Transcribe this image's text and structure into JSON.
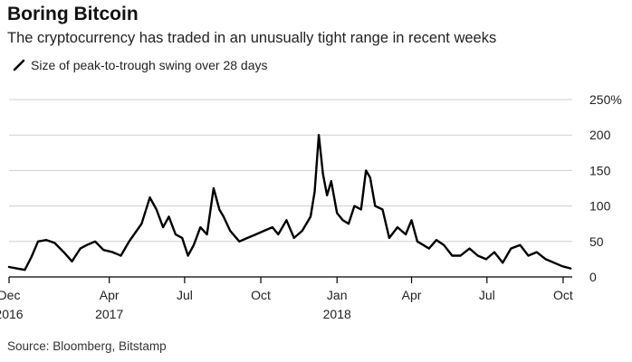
{
  "title": "Boring Bitcoin",
  "subtitle": "The cryptocurrency has traded in an unusually tight range in recent weeks",
  "source": "Source: Bloomberg, Bitstamp",
  "colors": {
    "line": "#000000",
    "grid": "#cfcfcf",
    "axis": "#000000",
    "text": "#222222"
  },
  "chart_data": {
    "type": "line",
    "title": "Boring Bitcoin",
    "subtitle": "The cryptocurrency has traded in an unusually tight range in recent weeks",
    "xlabel": "",
    "ylabel": "",
    "xlim": [
      "2016-12-01",
      "2018-10-12"
    ],
    "ylim": [
      0,
      250
    ],
    "grid": "horizontal",
    "legend_position": "top-left",
    "y_ticks": [
      {
        "value": 250,
        "label": "250%"
      },
      {
        "value": 200,
        "label": "200"
      },
      {
        "value": 150,
        "label": "150"
      },
      {
        "value": 100,
        "label": "100"
      },
      {
        "value": 50,
        "label": "50"
      },
      {
        "value": 0,
        "label": "0"
      }
    ],
    "x_ticks": [
      {
        "date": "2016-12-01",
        "label": "Dec",
        "year": "2016"
      },
      {
        "date": "2017-04-01",
        "label": "Apr",
        "year": "2017"
      },
      {
        "date": "2017-07-01",
        "label": "Jul",
        "year": ""
      },
      {
        "date": "2017-10-01",
        "label": "Oct",
        "year": ""
      },
      {
        "date": "2018-01-01",
        "label": "Jan",
        "year": "2018"
      },
      {
        "date": "2018-04-01",
        "label": "Apr",
        "year": ""
      },
      {
        "date": "2018-07-01",
        "label": "Jul",
        "year": ""
      },
      {
        "date": "2018-10-01",
        "label": "Oct",
        "year": ""
      }
    ],
    "series": [
      {
        "name": "Size of peak-to-trough swing over 28 days",
        "x": [
          "2016-12-01",
          "2016-12-10",
          "2016-12-20",
          "2016-12-28",
          "2017-01-05",
          "2017-01-15",
          "2017-01-25",
          "2017-02-05",
          "2017-02-15",
          "2017-02-25",
          "2017-03-05",
          "2017-03-15",
          "2017-03-25",
          "2017-04-05",
          "2017-04-15",
          "2017-04-25",
          "2017-05-01",
          "2017-05-10",
          "2017-05-20",
          "2017-05-28",
          "2017-06-05",
          "2017-06-12",
          "2017-06-20",
          "2017-06-28",
          "2017-07-05",
          "2017-07-12",
          "2017-07-20",
          "2017-07-28",
          "2017-08-05",
          "2017-08-12",
          "2017-08-17",
          "2017-08-25",
          "2017-09-05",
          "2017-09-15",
          "2017-09-25",
          "2017-10-05",
          "2017-10-15",
          "2017-10-22",
          "2017-11-01",
          "2017-11-10",
          "2017-11-20",
          "2017-11-30",
          "2017-12-05",
          "2017-12-10",
          "2017-12-15",
          "2017-12-20",
          "2017-12-25",
          "2018-01-01",
          "2018-01-08",
          "2018-01-15",
          "2018-01-22",
          "2018-01-30",
          "2018-02-05",
          "2018-02-10",
          "2018-02-16",
          "2018-02-25",
          "2018-03-05",
          "2018-03-15",
          "2018-03-25",
          "2018-04-01",
          "2018-04-08",
          "2018-04-15",
          "2018-04-22",
          "2018-05-01",
          "2018-05-10",
          "2018-05-20",
          "2018-05-30",
          "2018-06-10",
          "2018-06-20",
          "2018-06-30",
          "2018-07-10",
          "2018-07-20",
          "2018-07-30",
          "2018-08-10",
          "2018-08-20",
          "2018-08-30",
          "2018-09-10",
          "2018-09-20",
          "2018-09-30",
          "2018-10-10"
        ],
        "y": [
          14,
          12,
          10,
          28,
          50,
          52,
          48,
          35,
          22,
          40,
          45,
          50,
          38,
          35,
          30,
          50,
          60,
          75,
          112,
          95,
          70,
          85,
          60,
          55,
          30,
          45,
          70,
          60,
          125,
          95,
          85,
          65,
          50,
          55,
          60,
          65,
          70,
          60,
          80,
          55,
          65,
          85,
          120,
          200,
          145,
          115,
          135,
          90,
          80,
          75,
          100,
          95,
          150,
          140,
          100,
          95,
          55,
          70,
          60,
          80,
          50,
          45,
          40,
          52,
          45,
          30,
          30,
          40,
          30,
          25,
          35,
          20,
          40,
          45,
          30,
          35,
          25,
          20,
          15,
          12
        ]
      }
    ]
  }
}
